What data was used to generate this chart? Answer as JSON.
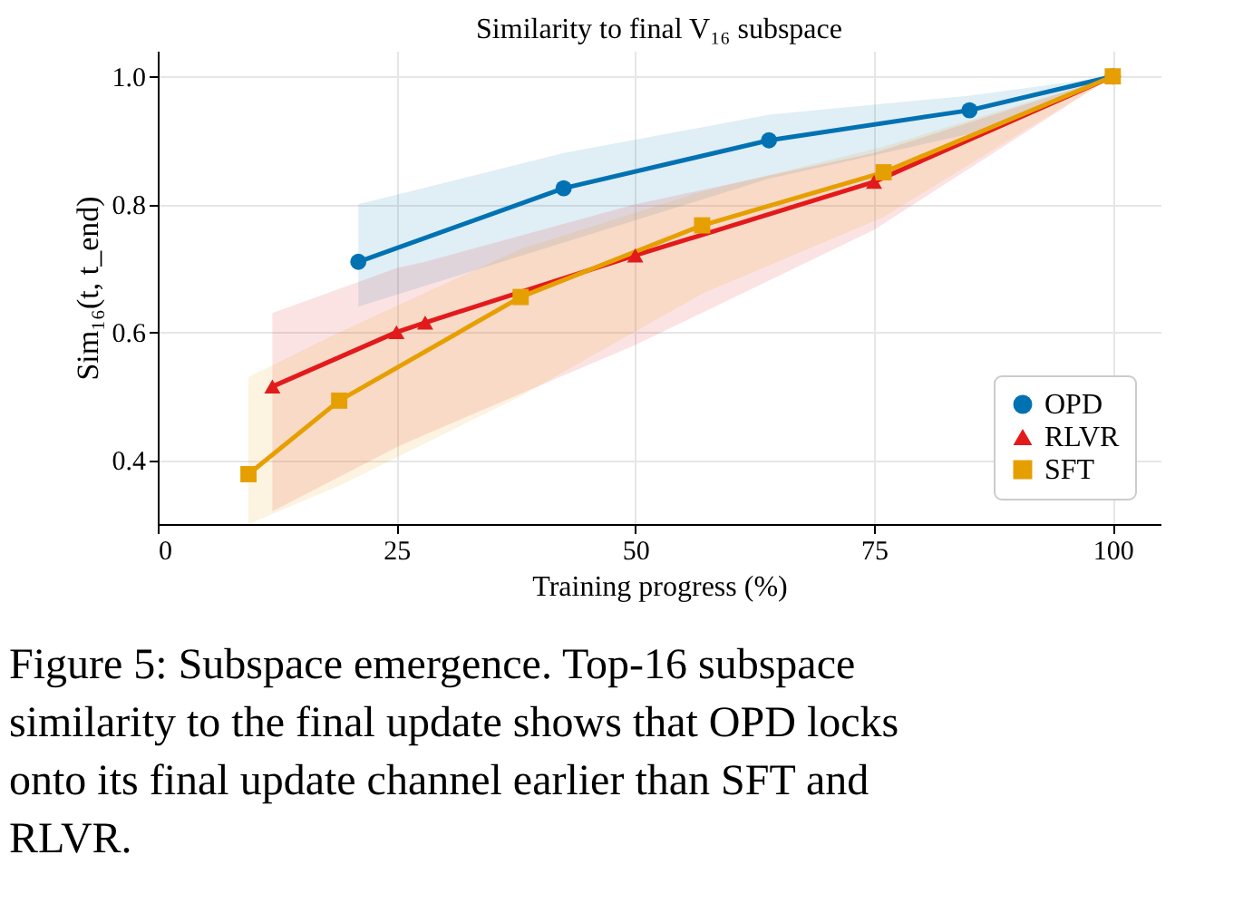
{
  "chart_data": {
    "type": "line",
    "title": "Similarity to final V₁₆ subspace",
    "xlabel": "Training progress (%)",
    "ylabel": "Sim₁₆(t, t_end)",
    "xlim": [
      0,
      105
    ],
    "xticks": [
      0,
      25,
      50,
      75,
      100
    ],
    "ylim": [
      0.3,
      1.04
    ],
    "yticks": [
      0.4,
      0.6,
      0.8,
      {
        "value": 1.0,
        "label": "1.0"
      }
    ],
    "grid": true,
    "legend": "bottom right",
    "line_style": "solid",
    "series": [
      {
        "name": "OPD",
        "color": "#0072b2",
        "marker": "circle",
        "x": [
          21,
          42.5,
          64,
          85,
          100
        ],
        "values": [
          0.71,
          0.825,
          0.9,
          0.947,
          1.0
        ],
        "lower": [
          0.64,
          0.74,
          0.84,
          0.91,
          1.0
        ],
        "upper": [
          0.8,
          0.88,
          0.94,
          0.97,
          1.0
        ]
      },
      {
        "name": "RLVR",
        "color": "#e31a1c",
        "marker": "triangle",
        "x": [
          12,
          25,
          28,
          50,
          75,
          100
        ],
        "values": [
          0.515,
          0.6,
          0.615,
          0.72,
          0.835,
          1.0
        ],
        "lower": [
          0.32,
          0.42,
          0.44,
          0.58,
          0.76,
          1.0
        ],
        "upper": [
          0.63,
          0.7,
          0.71,
          0.8,
          0.88,
          1.0
        ]
      },
      {
        "name": "SFT",
        "color": "#e69f00",
        "marker": "square",
        "x": [
          9.5,
          19,
          38,
          57,
          76,
          100
        ],
        "values": [
          0.378,
          0.493,
          0.655,
          0.767,
          0.85,
          1.0
        ],
        "lower": [
          0.3,
          0.36,
          0.5,
          0.66,
          0.78,
          1.0
        ],
        "upper": [
          0.53,
          0.6,
          0.73,
          0.82,
          0.89,
          1.0
        ]
      }
    ],
    "annotations": [
      "Figure 5: Subspace emergence. Top-16 subspace similarity to the final update shows that OPD locks onto its final update channel earlier than SFT and RLVR."
    ]
  }
}
